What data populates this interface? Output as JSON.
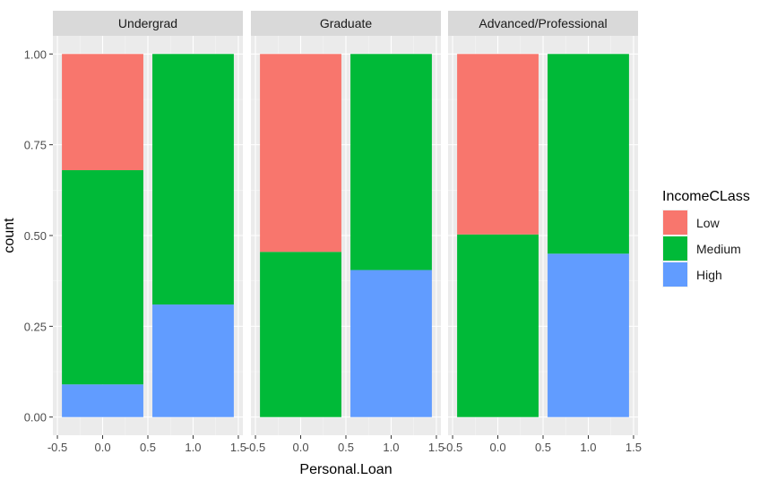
{
  "chart_data": {
    "type": "bar",
    "stacked": "fill",
    "facets": [
      {
        "strip": "Undergrad",
        "bars": [
          {
            "x": 0,
            "segments": {
              "Low": 0.32,
              "Medium": 0.59,
              "High": 0.09
            }
          },
          {
            "x": 1,
            "segments": {
              "Low": 0.0,
              "Medium": 0.69,
              "High": 0.31
            }
          }
        ]
      },
      {
        "strip": "Graduate",
        "bars": [
          {
            "x": 0,
            "segments": {
              "Low": 0.545,
              "Medium": 0.455,
              "High": 0.0
            }
          },
          {
            "x": 1,
            "segments": {
              "Low": 0.0,
              "Medium": 0.595,
              "High": 0.405
            }
          }
        ]
      },
      {
        "strip": "Advanced/Professional",
        "bars": [
          {
            "x": 0,
            "segments": {
              "Low": 0.497,
              "Medium": 0.503,
              "High": 0.0
            }
          },
          {
            "x": 1,
            "segments": {
              "Low": 0.0,
              "Medium": 0.55,
              "High": 0.45
            }
          }
        ]
      }
    ],
    "stack_order": [
      "High",
      "Medium",
      "Low"
    ],
    "xlabel": "Personal.Loan",
    "ylabel": "count",
    "xlim": [
      -0.55,
      1.55
    ],
    "ylim": [
      -0.05,
      1.05
    ],
    "x_ticks": [
      -0.5,
      0.0,
      0.5,
      1.0,
      1.5
    ],
    "x_tick_labels": [
      "-0.5",
      "0.0",
      "0.5",
      "1.0",
      "1.5"
    ],
    "y_ticks": [
      0,
      0.25,
      0.5,
      0.75,
      1.0
    ],
    "y_tick_labels": [
      "0.00",
      "0.25",
      "0.50",
      "0.75",
      "1.00"
    ],
    "legend": {
      "title": "IncomeCLass",
      "position": "right",
      "items": [
        {
          "label": "Low",
          "color": "#F8766D"
        },
        {
          "label": "Medium",
          "color": "#00BA38"
        },
        {
          "label": "High",
          "color": "#619CFF"
        }
      ]
    },
    "grid": true,
    "panel_background": "#EBEBEB",
    "strip_background": "#D9D9D9"
  }
}
